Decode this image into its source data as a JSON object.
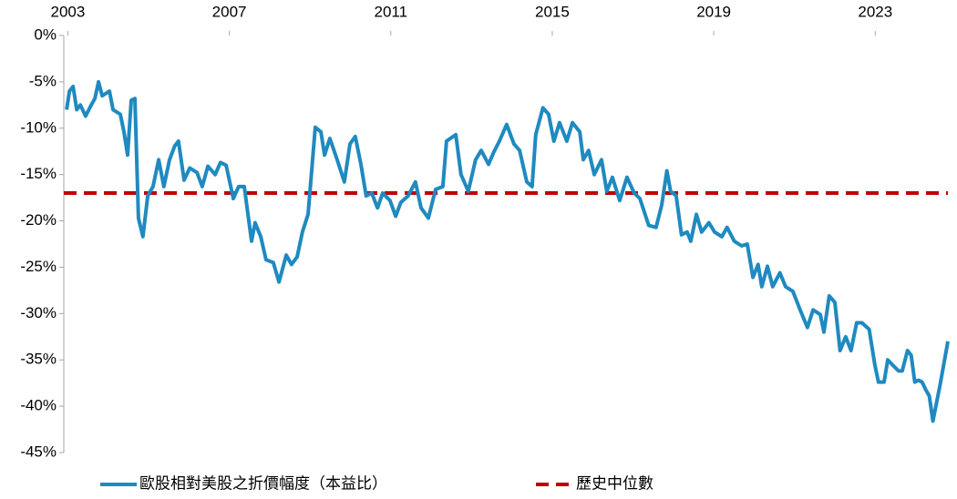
{
  "chart_data": {
    "type": "line",
    "x": [
      2002.97,
      2003.04,
      2003.13,
      2003.22,
      2003.31,
      2003.44,
      2003.58,
      2003.67,
      2003.76,
      2003.85,
      2004.03,
      2004.12,
      2004.3,
      2004.39,
      2004.48,
      2004.57,
      2004.66,
      2004.75,
      2004.86,
      2004.98,
      2005.11,
      2005.25,
      2005.38,
      2005.52,
      2005.65,
      2005.74,
      2005.88,
      2006.02,
      2006.2,
      2006.33,
      2006.47,
      2006.65,
      2006.78,
      2006.92,
      2007.1,
      2007.23,
      2007.37,
      2007.55,
      2007.64,
      2007.78,
      2007.91,
      2008.09,
      2008.23,
      2008.41,
      2008.54,
      2008.68,
      2008.81,
      2008.95,
      2009.13,
      2009.27,
      2009.36,
      2009.49,
      2009.67,
      2009.85,
      2009.99,
      2010.12,
      2010.26,
      2010.39,
      2010.53,
      2010.67,
      2010.8,
      2010.98,
      2011.12,
      2011.25,
      2011.43,
      2011.61,
      2011.75,
      2011.93,
      2012.11,
      2012.29,
      2012.38,
      2012.61,
      2012.74,
      2012.92,
      2013.1,
      2013.24,
      2013.42,
      2013.55,
      2013.69,
      2013.87,
      2014.05,
      2014.19,
      2014.37,
      2014.5,
      2014.59,
      2014.77,
      2014.91,
      2015.04,
      2015.18,
      2015.36,
      2015.5,
      2015.68,
      2015.77,
      2015.9,
      2016.04,
      2016.22,
      2016.35,
      2016.49,
      2016.67,
      2016.85,
      2017.03,
      2017.17,
      2017.39,
      2017.57,
      2017.71,
      2017.84,
      2017.93,
      2018.07,
      2018.2,
      2018.34,
      2018.43,
      2018.57,
      2018.7,
      2018.88,
      2019.02,
      2019.2,
      2019.33,
      2019.51,
      2019.69,
      2019.83,
      2019.97,
      2020.1,
      2020.19,
      2020.33,
      2020.46,
      2020.64,
      2020.78,
      2020.96,
      2021.14,
      2021.32,
      2021.46,
      2021.64,
      2021.73,
      2021.86,
      2022.0,
      2022.13,
      2022.27,
      2022.4,
      2022.54,
      2022.67,
      2022.85,
      2022.99,
      2023.08,
      2023.22,
      2023.31,
      2023.44,
      2023.58,
      2023.67,
      2023.8,
      2023.89,
      2023.98,
      2024.07,
      2024.16,
      2024.25,
      2024.34,
      2024.43,
      2024.62,
      2024.8
    ],
    "series": [
      {
        "name": "歐股相對美股之折價幅度（本益比）",
        "color": "#1f8ac0",
        "values": [
          -8.0,
          -6.0,
          -5.5,
          -8.0,
          -7.5,
          -8.7,
          -7.5,
          -6.8,
          -5.0,
          -6.5,
          -6.0,
          -8.0,
          -8.5,
          -10.4,
          -12.9,
          -7.0,
          -6.8,
          -19.7,
          -21.7,
          -17.3,
          -16.3,
          -13.4,
          -16.3,
          -13.4,
          -11.9,
          -11.4,
          -15.6,
          -14.3,
          -14.8,
          -16.3,
          -14.1,
          -15.0,
          -13.7,
          -14.0,
          -17.6,
          -16.3,
          -16.3,
          -22.2,
          -20.2,
          -21.7,
          -24.2,
          -24.5,
          -26.6,
          -23.7,
          -24.7,
          -23.9,
          -21.2,
          -19.3,
          -9.9,
          -10.4,
          -12.9,
          -11.1,
          -13.4,
          -15.8,
          -11.7,
          -10.9,
          -13.9,
          -17.3,
          -17.0,
          -18.6,
          -17.0,
          -17.8,
          -19.5,
          -18.0,
          -17.3,
          -15.8,
          -18.6,
          -19.7,
          -16.6,
          -16.3,
          -11.4,
          -10.7,
          -15.0,
          -16.8,
          -13.4,
          -12.4,
          -13.9,
          -12.6,
          -11.4,
          -9.6,
          -11.7,
          -12.4,
          -15.8,
          -16.3,
          -10.7,
          -7.8,
          -8.5,
          -11.4,
          -9.4,
          -11.4,
          -9.4,
          -10.4,
          -13.4,
          -12.4,
          -15.0,
          -13.4,
          -16.8,
          -15.3,
          -17.8,
          -15.3,
          -17.0,
          -17.6,
          -20.5,
          -20.7,
          -18.3,
          -14.6,
          -16.8,
          -17.3,
          -21.5,
          -21.2,
          -22.2,
          -19.3,
          -21.2,
          -20.2,
          -21.2,
          -21.7,
          -20.7,
          -22.2,
          -22.7,
          -22.5,
          -26.1,
          -24.7,
          -27.1,
          -24.9,
          -27.1,
          -25.6,
          -27.1,
          -27.6,
          -29.6,
          -31.5,
          -29.6,
          -30.1,
          -32.0,
          -28.1,
          -28.8,
          -34.0,
          -32.5,
          -34.0,
          -31.0,
          -31.0,
          -31.7,
          -35.5,
          -37.4,
          -37.4,
          -35.0,
          -35.6,
          -36.2,
          -36.2,
          -34.0,
          -34.5,
          -37.4,
          -37.2,
          -37.4,
          -38.2,
          -38.9,
          -41.6,
          -37.4,
          -33.0
        ]
      }
    ],
    "median": {
      "name": "歷史中位數",
      "value": -17,
      "color": "#c00000"
    },
    "xlim": [
      2002.9,
      2024.8
    ],
    "xticks": [
      2003,
      2007,
      2011,
      2015,
      2019,
      2023
    ],
    "ylim": [
      -45,
      0
    ],
    "yticks": [
      {
        "value": 0,
        "label": "0%"
      },
      {
        "value": -5,
        "label": "-5%"
      },
      {
        "value": -10,
        "label": "-10%"
      },
      {
        "value": -15,
        "label": "-15%"
      },
      {
        "value": -20,
        "label": "-20%"
      },
      {
        "value": -25,
        "label": "-25%"
      },
      {
        "value": -30,
        "label": "-30%"
      },
      {
        "value": -35,
        "label": "-35%"
      },
      {
        "value": -40,
        "label": "-40%"
      },
      {
        "value": -45,
        "label": "-45%"
      }
    ]
  }
}
